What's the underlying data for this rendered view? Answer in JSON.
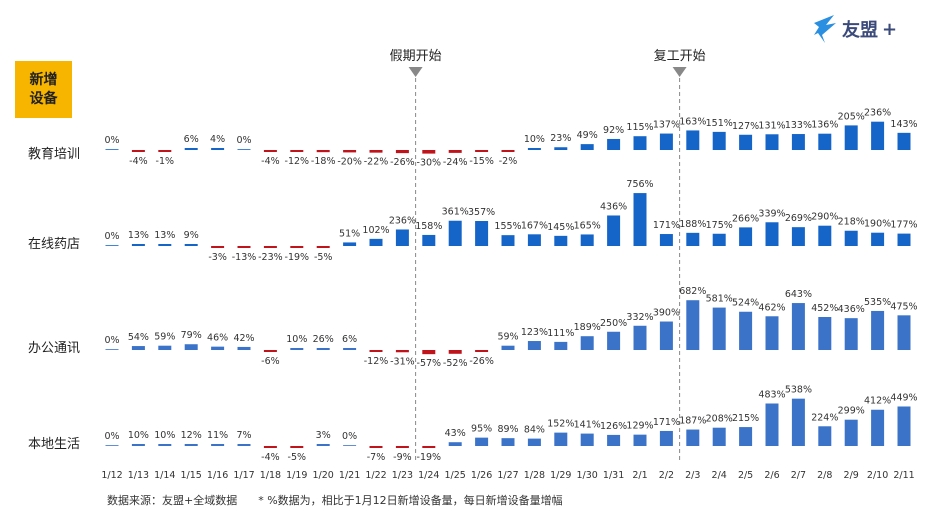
{
  "badge": {
    "line1": "新增",
    "line2": "设备"
  },
  "logo": {
    "name": "友盟",
    "plus": "+"
  },
  "footer": {
    "source": "数据来源：友盟+全域数据",
    "note": "* %数据为，相比于1月12日新增设备量，每日新增设备量增幅"
  },
  "colors": {
    "positive": "#1565c8",
    "positive_light": "#3b73c9",
    "negative": "#c0141c",
    "badge": "#f7b500"
  },
  "chart_data": {
    "type": "bar",
    "title": "新增设备",
    "categories": [
      "1/12",
      "1/13",
      "1/14",
      "1/15",
      "1/16",
      "1/17",
      "1/18",
      "1/19",
      "1/20",
      "1/21",
      "1/22",
      "1/23",
      "1/24",
      "1/25",
      "1/26",
      "1/27",
      "1/28",
      "1/29",
      "1/30",
      "1/31",
      "2/1",
      "2/2",
      "2/3",
      "2/4",
      "2/5",
      "2/6",
      "2/7",
      "2/8",
      "2/9",
      "2/10",
      "2/11"
    ],
    "unit": "%",
    "series": [
      {
        "name": "教育培训",
        "values": [
          0,
          -4,
          -1,
          6,
          4,
          0,
          -4,
          -12,
          -18,
          -20,
          -22,
          -26,
          -30,
          -24,
          -15,
          -2,
          10,
          23,
          49,
          92,
          115,
          137,
          163,
          151,
          127,
          131,
          133,
          136,
          205,
          236,
          143
        ]
      },
      {
        "name": "在线药店",
        "values": [
          0,
          13,
          13,
          9,
          -3,
          -13,
          -23,
          -19,
          -5,
          51,
          102,
          236,
          158,
          361,
          357,
          155,
          167,
          145,
          165,
          436,
          756,
          171,
          188,
          175,
          266,
          339,
          269,
          290,
          218,
          190,
          177
        ]
      },
      {
        "name": "办公通讯",
        "values": [
          0,
          54,
          59,
          79,
          46,
          42,
          -6,
          10,
          26,
          6,
          -12,
          -31,
          -57,
          -52,
          -26,
          59,
          123,
          111,
          189,
          250,
          332,
          390,
          682,
          581,
          524,
          462,
          643,
          452,
          436,
          535,
          475
        ]
      },
      {
        "name": "本地生活",
        "values": [
          0,
          10,
          10,
          12,
          11,
          7,
          -4,
          -5,
          3,
          0,
          -7,
          -9,
          -19,
          43,
          95,
          89,
          84,
          152,
          141,
          126,
          129,
          171,
          187,
          208,
          215,
          483,
          538,
          224,
          299,
          412,
          449
        ]
      }
    ],
    "annotations": [
      {
        "label": "假期开始",
        "between": [
          "1/23",
          "1/24"
        ]
      },
      {
        "label": "复工开始",
        "between": [
          "2/2",
          "2/3"
        ]
      }
    ]
  }
}
